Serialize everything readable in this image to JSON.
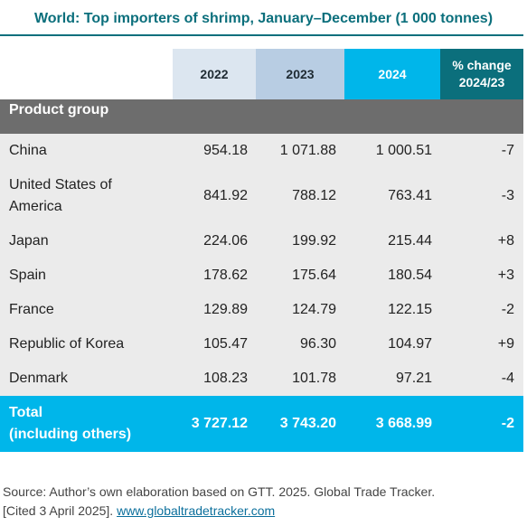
{
  "title": "World: Top importers of shrimp, January–December (1 000 tonnes)",
  "columns": {
    "y2022": "2022",
    "y2023": "2023",
    "y2024": "2024",
    "pct_line1": "% change",
    "pct_line2": "2024/23"
  },
  "group_label": "Product group",
  "rows": [
    {
      "name_line1": "China",
      "name_line2": "",
      "v2022": "954.18",
      "v2023": "1 071.88",
      "v2024": "1 000.51",
      "pct": "-7"
    },
    {
      "name_line1": "United States of",
      "name_line2": "America",
      "v2022": "841.92",
      "v2023": "788.12",
      "v2024": "763.41",
      "pct": "-3"
    },
    {
      "name_line1": "Japan",
      "name_line2": "",
      "v2022": "224.06",
      "v2023": "199.92",
      "v2024": "215.44",
      "pct": "+8"
    },
    {
      "name_line1": "Spain",
      "name_line2": "",
      "v2022": "178.62",
      "v2023": "175.64",
      "v2024": "180.54",
      "pct": "+3"
    },
    {
      "name_line1": "France",
      "name_line2": "",
      "v2022": "129.89",
      "v2023": "124.79",
      "v2024": "122.15",
      "pct": "-2"
    },
    {
      "name_line1": "Republic of Korea",
      "name_line2": "",
      "v2022": "105.47",
      "v2023": "96.30",
      "v2024": "104.97",
      "pct": "+9"
    },
    {
      "name_line1": "Denmark",
      "name_line2": "",
      "v2022": "108.23",
      "v2023": "101.78",
      "v2024": "97.21",
      "pct": "-4"
    }
  ],
  "total": {
    "name_line1": "Total",
    "name_line2": "(including others)",
    "v2022": "3 727.12",
    "v2023": "3 743.20",
    "v2024": "3 668.99",
    "pct": "-2"
  },
  "source": {
    "text_line1": "Source: Author’s own elaboration based on GTT. 2025. Global Trade Tracker.",
    "text_line2": "[Cited 3 April 2025]. ",
    "link": "www.globaltradetracker.com"
  },
  "colors": {
    "title": "#0b6f7c",
    "header_2022": "#dce6f0",
    "header_2023": "#b8cde3",
    "header_2024": "#00b6ea",
    "header_pct": "#0b6f7c",
    "group_bar": "#6d6d6d",
    "body_bg": "#ebebeb",
    "total_bg": "#00b6ea"
  }
}
